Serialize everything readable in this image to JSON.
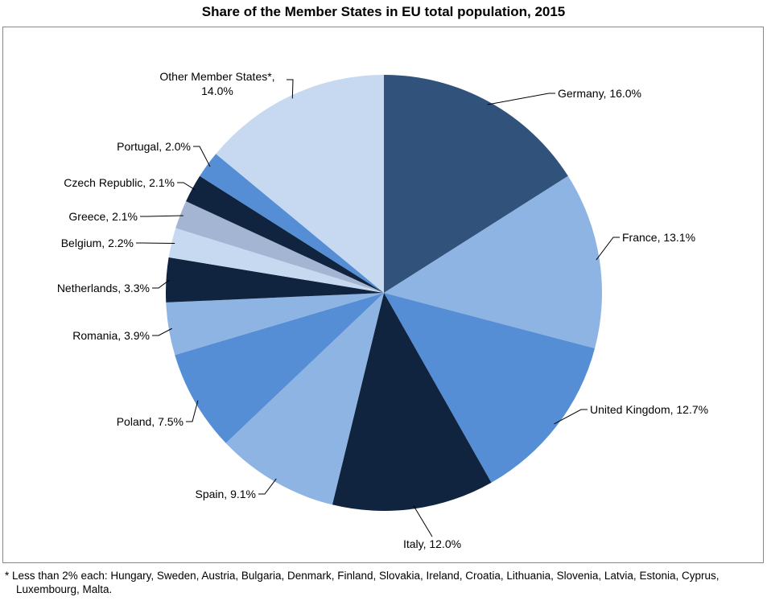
{
  "chart_data": {
    "type": "pie",
    "title": "Share of the Member States in EU total population, 2015",
    "unit": "%",
    "slices": [
      {
        "label": "Germany",
        "value": 16.0,
        "display": "Germany, 16.0%",
        "color": "#31527A"
      },
      {
        "label": "France",
        "value": 13.1,
        "display": "France, 13.1%",
        "color": "#8EB4E3"
      },
      {
        "label": "United Kingdom",
        "value": 12.7,
        "display": "United Kingdom, 12.7%",
        "color": "#558ED5"
      },
      {
        "label": "Italy",
        "value": 12.0,
        "display": "Italy, 12.0%",
        "color": "#10243F"
      },
      {
        "label": "Spain",
        "value": 9.1,
        "display": "Spain, 9.1%",
        "color": "#8EB4E3"
      },
      {
        "label": "Poland",
        "value": 7.5,
        "display": "Poland, 7.5%",
        "color": "#558ED5"
      },
      {
        "label": "Romania",
        "value": 3.9,
        "display": "Romania, 3.9%",
        "color": "#8EB4E3"
      },
      {
        "label": "Netherlands",
        "value": 3.3,
        "display": "Netherlands, 3.3%",
        "color": "#10243F"
      },
      {
        "label": "Belgium",
        "value": 2.2,
        "display": "Belgium, 2.2%",
        "color": "#C6D9F1"
      },
      {
        "label": "Greece",
        "value": 2.1,
        "display": "Greece, 2.1%",
        "color": "#A4B5D3"
      },
      {
        "label": "Czech Republic",
        "value": 2.1,
        "display": "Czech Republic, 2.1%",
        "color": "#10243F"
      },
      {
        "label": "Portugal",
        "value": 2.0,
        "display": "Portugal, 2.0%",
        "color": "#558ED5"
      },
      {
        "label": "Other Member States*",
        "value": 14.0,
        "display": "Other Member States*,",
        "display2": "14.0%",
        "color": "#C6D9F1"
      }
    ],
    "footnote": "* Less than 2% each: Hungary, Sweden, Austria, Bulgaria, Denmark, Finland, Slovakia, Ireland, Croatia, Lithuania, Slovenia, Latvia, Estonia, Cyprus, Luxembourg, Malta."
  }
}
